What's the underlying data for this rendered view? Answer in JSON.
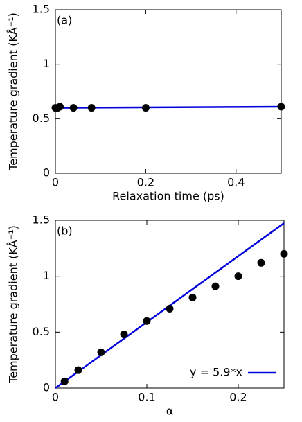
{
  "chart_data": [
    {
      "type": "scatter",
      "annotation": "(a)",
      "x_label": "Relaxation time (ps)",
      "y_label": "Temperature gradient (KÅ⁻¹)",
      "xlim": [
        0,
        0.5
      ],
      "xticks": [
        0,
        0.2,
        0.4
      ],
      "ylim": [
        0,
        1.5
      ],
      "yticks": [
        0,
        0.5,
        1,
        1.5
      ],
      "series": [
        {
          "mode": "line",
          "color": "#0000dd",
          "x": [
            0,
            0.5
          ],
          "values": [
            0.6,
            0.61
          ]
        },
        {
          "mode": "markers",
          "color": "#000000",
          "x": [
            0,
            0.005,
            0.01,
            0.04,
            0.08,
            0.2,
            0.5
          ],
          "values": [
            0.6,
            0.6,
            0.61,
            0.6,
            0.6,
            0.6,
            0.61
          ]
        }
      ]
    },
    {
      "type": "scatter",
      "annotation": "(b)",
      "x_label": "α",
      "y_label": "Temperature gradient (KÅ⁻¹)",
      "xlim": [
        0,
        0.25
      ],
      "xticks": [
        0,
        0.1,
        0.2
      ],
      "ylim": [
        0,
        1.5
      ],
      "yticks": [
        0,
        0.5,
        1,
        1.5
      ],
      "legend": "lower right",
      "series": [
        {
          "mode": "line",
          "name": "y = 5.9*x",
          "color": "#0000dd",
          "x": [
            0,
            0.25
          ],
          "values": [
            0,
            1.475
          ]
        },
        {
          "mode": "markers",
          "color": "#000000",
          "x": [
            0.01,
            0.025,
            0.05,
            0.075,
            0.1,
            0.125,
            0.15,
            0.175,
            0.2,
            0.225,
            0.25
          ],
          "values": [
            0.06,
            0.16,
            0.32,
            0.48,
            0.6,
            0.71,
            0.81,
            0.91,
            1.0,
            1.12,
            1.2
          ]
        }
      ]
    }
  ]
}
